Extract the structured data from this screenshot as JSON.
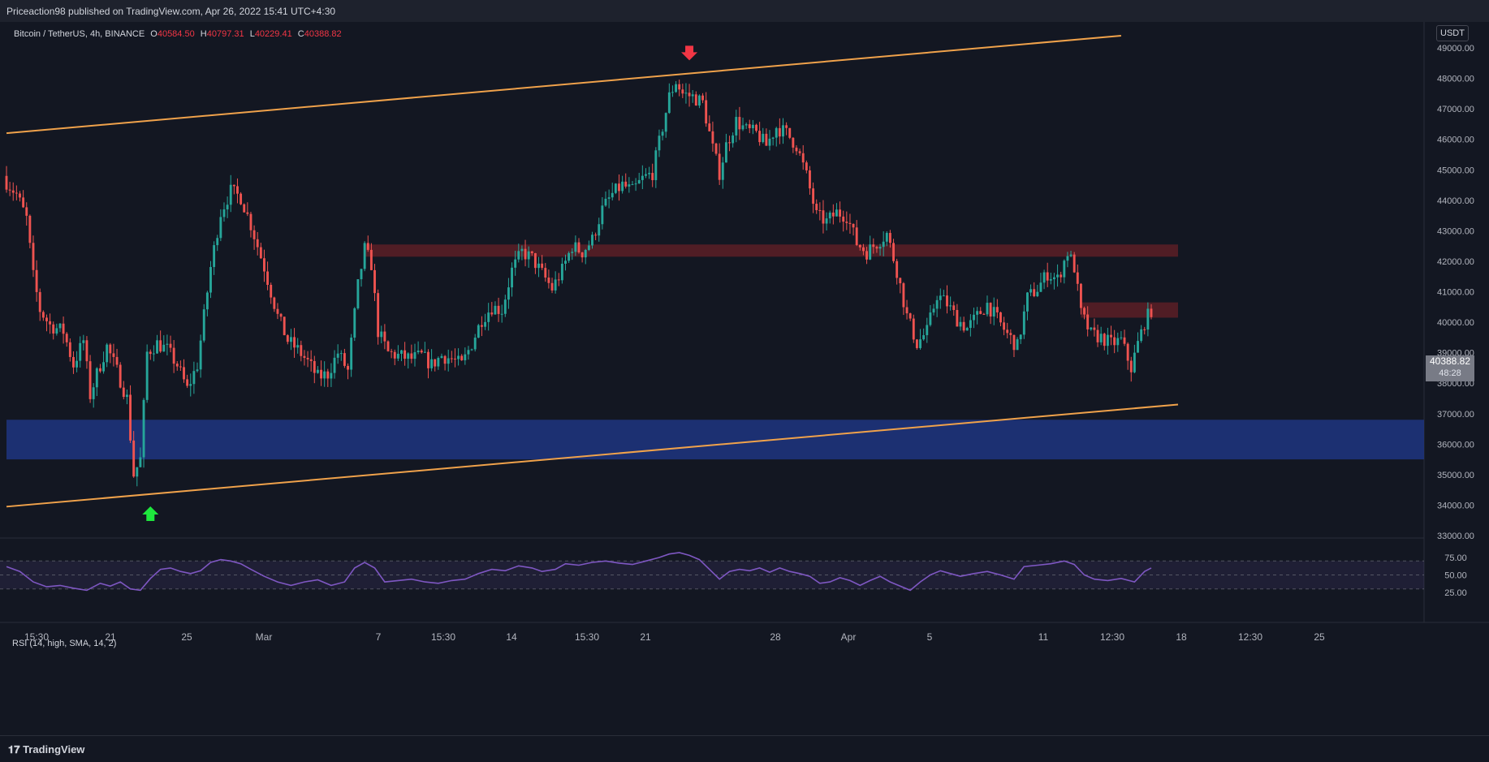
{
  "header": {
    "published_text": "Priceaction98 published on TradingView.com, Apr 26, 2022 15:41 UTC+4:30"
  },
  "legend": {
    "symbol": "Bitcoin / TetherUS, 4h, BINANCE",
    "open_label": "O",
    "open": "40584.50",
    "high_label": "H",
    "high": "40797.31",
    "low_label": "L",
    "low": "40229.41",
    "close_label": "C",
    "close": "40388.82"
  },
  "currency_button": "USDT",
  "price_tag": {
    "price": "40388.82",
    "countdown": "48:28"
  },
  "rsi_label": "RSI (14, high, SMA, 14, 2)",
  "footer": {
    "logo_text": "TradingView"
  },
  "colors": {
    "background": "#131722",
    "up": "#26a69a",
    "down": "#ef5350",
    "channel": "#f0a24b",
    "support_zone": "#1f3580",
    "resistance_zone": "#5c1f26",
    "rsi_line": "#7e57c2",
    "arrow_up": "#1ee73d",
    "arrow_down": "#f23645"
  },
  "chart_data": [
    {
      "type": "candlestick",
      "title": "Bitcoin / TetherUS, 4h, BINANCE",
      "ylim": [
        33000,
        49800
      ],
      "y_ticks": [
        "49000.00",
        "48000.00",
        "47000.00",
        "46000.00",
        "45000.00",
        "44000.00",
        "43000.00",
        "42000.00",
        "41000.00",
        "40000.00",
        "39000.00",
        "38000.00",
        "37000.00",
        "36000.00",
        "35000.00",
        "34000.00",
        "33000.00"
      ],
      "x_tick_labels": [
        "15:30",
        "21",
        "25",
        "Mar",
        "7",
        "15:30",
        "14",
        "15:30",
        "21",
        "28",
        "Apr",
        "5",
        "11",
        "12:30",
        "18",
        "12:30",
        "25"
      ],
      "close_path": [
        [
          0,
          44600
        ],
        [
          3,
          44200
        ],
        [
          6,
          43400
        ],
        [
          8,
          41500
        ],
        [
          10,
          40400
        ],
        [
          13,
          39900
        ],
        [
          17,
          39700
        ],
        [
          20,
          38600
        ],
        [
          23,
          39400
        ],
        [
          25,
          37600
        ],
        [
          27,
          38300
        ],
        [
          30,
          39200
        ],
        [
          33,
          38400
        ],
        [
          36,
          37500
        ],
        [
          38,
          35000
        ],
        [
          40,
          35500
        ],
        [
          42,
          39000
        ],
        [
          45,
          39300
        ],
        [
          48,
          39100
        ],
        [
          51,
          38600
        ],
        [
          54,
          37800
        ],
        [
          57,
          38600
        ],
        [
          61,
          41800
        ],
        [
          64,
          43600
        ],
        [
          67,
          44300
        ],
        [
          70,
          44100
        ],
        [
          73,
          43200
        ],
        [
          77,
          41800
        ],
        [
          81,
          40200
        ],
        [
          84,
          39400
        ],
        [
          87,
          39100
        ],
        [
          90,
          38700
        ],
        [
          93,
          38200
        ],
        [
          96,
          38300
        ],
        [
          99,
          39000
        ],
        [
          102,
          38400
        ],
        [
          105,
          41200
        ],
        [
          107,
          42400
        ],
        [
          109,
          41900
        ],
        [
          111,
          39700
        ],
        [
          114,
          39000
        ],
        [
          117,
          38900
        ],
        [
          121,
          38800
        ],
        [
          124,
          38900
        ],
        [
          127,
          38600
        ],
        [
          130,
          38900
        ],
        [
          133,
          38800
        ],
        [
          136,
          38600
        ],
        [
          139,
          39300
        ],
        [
          142,
          40100
        ],
        [
          145,
          40500
        ],
        [
          148,
          40400
        ],
        [
          151,
          41700
        ],
        [
          154,
          42300
        ],
        [
          157,
          42100
        ],
        [
          160,
          41600
        ],
        [
          163,
          41100
        ],
        [
          166,
          41700
        ],
        [
          169,
          42500
        ],
        [
          172,
          42300
        ],
        [
          175,
          42700
        ],
        [
          178,
          43700
        ],
        [
          181,
          44200
        ],
        [
          184,
          44500
        ],
        [
          187,
          44300
        ],
        [
          190,
          44700
        ],
        [
          193,
          44900
        ],
        [
          196,
          46400
        ],
        [
          198,
          47400
        ],
        [
          200,
          47900
        ],
        [
          202,
          47500
        ],
        [
          205,
          47400
        ],
        [
          208,
          47200
        ],
        [
          211,
          45700
        ],
        [
          213,
          44900
        ],
        [
          215,
          45800
        ],
        [
          218,
          46600
        ],
        [
          221,
          46300
        ],
        [
          224,
          46200
        ],
        [
          227,
          45800
        ],
        [
          230,
          46400
        ],
        [
          233,
          46200
        ],
        [
          236,
          45800
        ],
        [
          239,
          44800
        ],
        [
          242,
          43500
        ],
        [
          245,
          43300
        ],
        [
          248,
          43600
        ],
        [
          251,
          43500
        ],
        [
          254,
          42600
        ],
        [
          257,
          42300
        ],
        [
          260,
          42600
        ],
        [
          263,
          42900
        ],
        [
          266,
          41700
        ],
        [
          269,
          40200
        ],
        [
          272,
          39300
        ],
        [
          275,
          39700
        ],
        [
          278,
          40900
        ],
        [
          281,
          40600
        ],
        [
          284,
          40100
        ],
        [
          287,
          39800
        ],
        [
          290,
          40200
        ],
        [
          293,
          40600
        ],
        [
          296,
          40100
        ],
        [
          299,
          39600
        ],
        [
          302,
          39200
        ],
        [
          305,
          40800
        ],
        [
          308,
          41100
        ],
        [
          311,
          41600
        ],
        [
          314,
          41400
        ],
        [
          317,
          42300
        ],
        [
          319,
          41800
        ],
        [
          321,
          40300
        ],
        [
          324,
          39600
        ],
        [
          327,
          39500
        ],
        [
          330,
          39300
        ],
        [
          333,
          39400
        ],
        [
          336,
          38500
        ],
        [
          338,
          39300
        ],
        [
          340,
          40000
        ],
        [
          342,
          40400
        ]
      ],
      "support_zone": {
        "from": 35500,
        "to": 36800
      },
      "resistance_zones": [
        {
          "from_x": 107,
          "to_x": 350,
          "from": 42150,
          "to": 42550
        },
        {
          "from_x": 321,
          "to_x": 350,
          "from": 40150,
          "to": 40650
        }
      ],
      "channel": {
        "upper": [
          [
            0,
            46200
          ],
          [
            333,
            49400
          ]
        ],
        "lower": [
          [
            0,
            33950
          ],
          [
            350,
            37300
          ]
        ]
      },
      "markers": [
        {
          "kind": "arrow-down",
          "x": 204,
          "price": 48750
        },
        {
          "kind": "arrow-up",
          "x": 43,
          "price": 33800
        }
      ]
    },
    {
      "type": "line",
      "title": "RSI (14, high, SMA, 14, 2)",
      "ylim": [
        20,
        85
      ],
      "y_ticks": [
        "75.00",
        "50.00",
        "25.00"
      ],
      "bands": [
        30,
        50,
        70
      ],
      "rsi_path": [
        [
          0,
          62
        ],
        [
          4,
          55
        ],
        [
          8,
          40
        ],
        [
          12,
          33
        ],
        [
          16,
          35
        ],
        [
          20,
          31
        ],
        [
          24,
          28
        ],
        [
          28,
          38
        ],
        [
          31,
          34
        ],
        [
          34,
          40
        ],
        [
          37,
          30
        ],
        [
          40,
          28
        ],
        [
          43,
          45
        ],
        [
          46,
          58
        ],
        [
          49,
          60
        ],
        [
          52,
          55
        ],
        [
          55,
          52
        ],
        [
          58,
          56
        ],
        [
          61,
          68
        ],
        [
          64,
          72
        ],
        [
          67,
          70
        ],
        [
          70,
          66
        ],
        [
          73,
          58
        ],
        [
          77,
          48
        ],
        [
          81,
          40
        ],
        [
          85,
          35
        ],
        [
          89,
          40
        ],
        [
          93,
          43
        ],
        [
          97,
          35
        ],
        [
          101,
          40
        ],
        [
          104,
          60
        ],
        [
          107,
          68
        ],
        [
          110,
          60
        ],
        [
          113,
          40
        ],
        [
          117,
          42
        ],
        [
          121,
          44
        ],
        [
          125,
          40
        ],
        [
          129,
          38
        ],
        [
          133,
          42
        ],
        [
          137,
          44
        ],
        [
          141,
          52
        ],
        [
          145,
          58
        ],
        [
          149,
          56
        ],
        [
          153,
          63
        ],
        [
          157,
          60
        ],
        [
          160,
          55
        ],
        [
          164,
          58
        ],
        [
          167,
          66
        ],
        [
          171,
          64
        ],
        [
          175,
          68
        ],
        [
          179,
          70
        ],
        [
          183,
          67
        ],
        [
          187,
          65
        ],
        [
          191,
          70
        ],
        [
          195,
          75
        ],
        [
          198,
          80
        ],
        [
          201,
          82
        ],
        [
          204,
          78
        ],
        [
          207,
          72
        ],
        [
          210,
          58
        ],
        [
          213,
          44
        ],
        [
          216,
          55
        ],
        [
          219,
          58
        ],
        [
          222,
          56
        ],
        [
          225,
          60
        ],
        [
          228,
          54
        ],
        [
          231,
          60
        ],
        [
          234,
          55
        ],
        [
          237,
          52
        ],
        [
          240,
          48
        ],
        [
          243,
          38
        ],
        [
          246,
          40
        ],
        [
          249,
          46
        ],
        [
          252,
          42
        ],
        [
          255,
          35
        ],
        [
          258,
          42
        ],
        [
          261,
          48
        ],
        [
          264,
          40
        ],
        [
          267,
          34
        ],
        [
          270,
          28
        ],
        [
          273,
          40
        ],
        [
          276,
          50
        ],
        [
          279,
          56
        ],
        [
          282,
          52
        ],
        [
          285,
          48
        ],
        [
          289,
          52
        ],
        [
          293,
          55
        ],
        [
          297,
          50
        ],
        [
          301,
          44
        ],
        [
          304,
          62
        ],
        [
          308,
          64
        ],
        [
          312,
          66
        ],
        [
          316,
          70
        ],
        [
          319,
          65
        ],
        [
          322,
          50
        ],
        [
          325,
          44
        ],
        [
          329,
          42
        ],
        [
          333,
          45
        ],
        [
          337,
          40
        ],
        [
          340,
          55
        ],
        [
          342,
          60
        ]
      ]
    }
  ]
}
